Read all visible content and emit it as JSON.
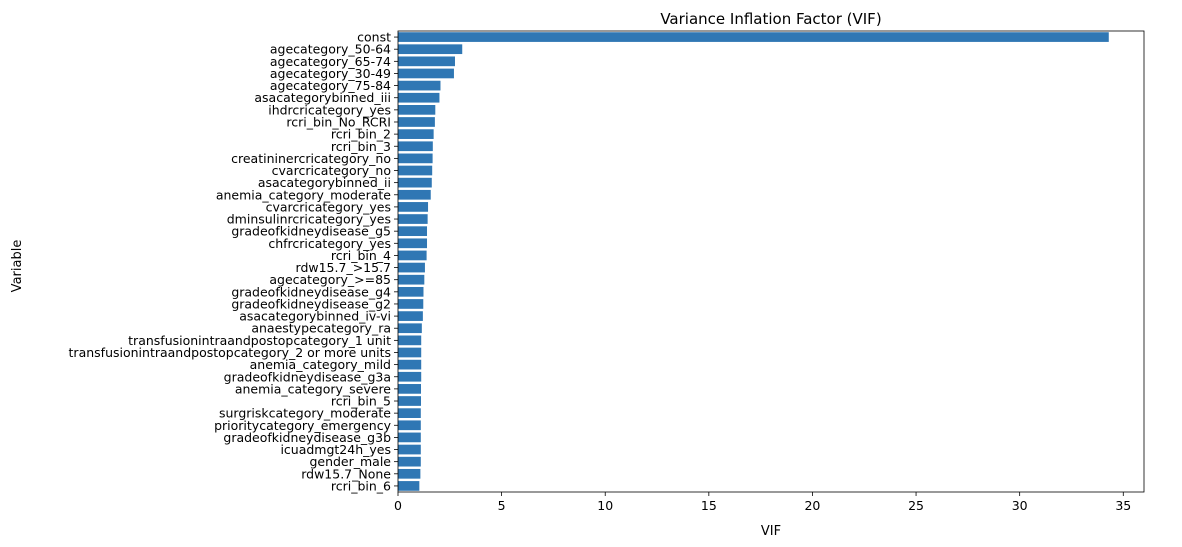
{
  "chart_data": {
    "type": "bar",
    "orientation": "horizontal",
    "title": "Variance Inflation Factor (VIF)",
    "xlabel": "VIF",
    "ylabel": "Variable",
    "xlim": [
      0,
      36
    ],
    "xticks": [
      0,
      5,
      10,
      15,
      20,
      25,
      30,
      35
    ],
    "grid": false,
    "bar_color": "#2f77b4",
    "categories": [
      "const",
      "agecategory_50-64",
      "agecategory_65-74",
      "agecategory_30-49",
      "agecategory_75-84",
      "asacategorybinned_iii",
      "ihdrcricategory_yes",
      "rcri_bin_No_RCRI",
      "rcri_bin_2",
      "rcri_bin_3",
      "creatininercricategory_no",
      "cvarcricategory_no",
      "asacategorybinned_ii",
      "anemia_category_moderate",
      "cvarcricategory_yes",
      "dminsulinrcricategory_yes",
      "gradeofkidneydisease_g5",
      "chfrcricategory_yes",
      "rcri_bin_4",
      "rdw15.7_>15.7",
      "agecategory_>=85",
      "gradeofkidneydisease_g4",
      "gradeofkidneydisease_g2",
      "asacategorybinned_iv-vi",
      "anaestypecategory_ra",
      "transfusionintraandpostopcategory_1 unit",
      "transfusionintraandpostopcategory_2 or more units",
      "anemia_category_mild",
      "gradeofkidneydisease_g3a",
      "anemia_category_severe",
      "rcri_bin_5",
      "surgriskcategory_moderate",
      "prioritycategory_emergency",
      "gradeofkidneydisease_g3b",
      "icuadmgt24h_yes",
      "gender_male",
      "rdw15.7_None",
      "rcri_bin_6"
    ],
    "values": [
      34.3,
      3.1,
      2.75,
      2.7,
      2.05,
      2.0,
      1.8,
      1.78,
      1.72,
      1.68,
      1.67,
      1.65,
      1.63,
      1.58,
      1.45,
      1.43,
      1.4,
      1.4,
      1.38,
      1.3,
      1.27,
      1.23,
      1.22,
      1.2,
      1.15,
      1.12,
      1.12,
      1.12,
      1.12,
      1.11,
      1.11,
      1.1,
      1.1,
      1.1,
      1.1,
      1.1,
      1.08,
      1.03
    ]
  }
}
